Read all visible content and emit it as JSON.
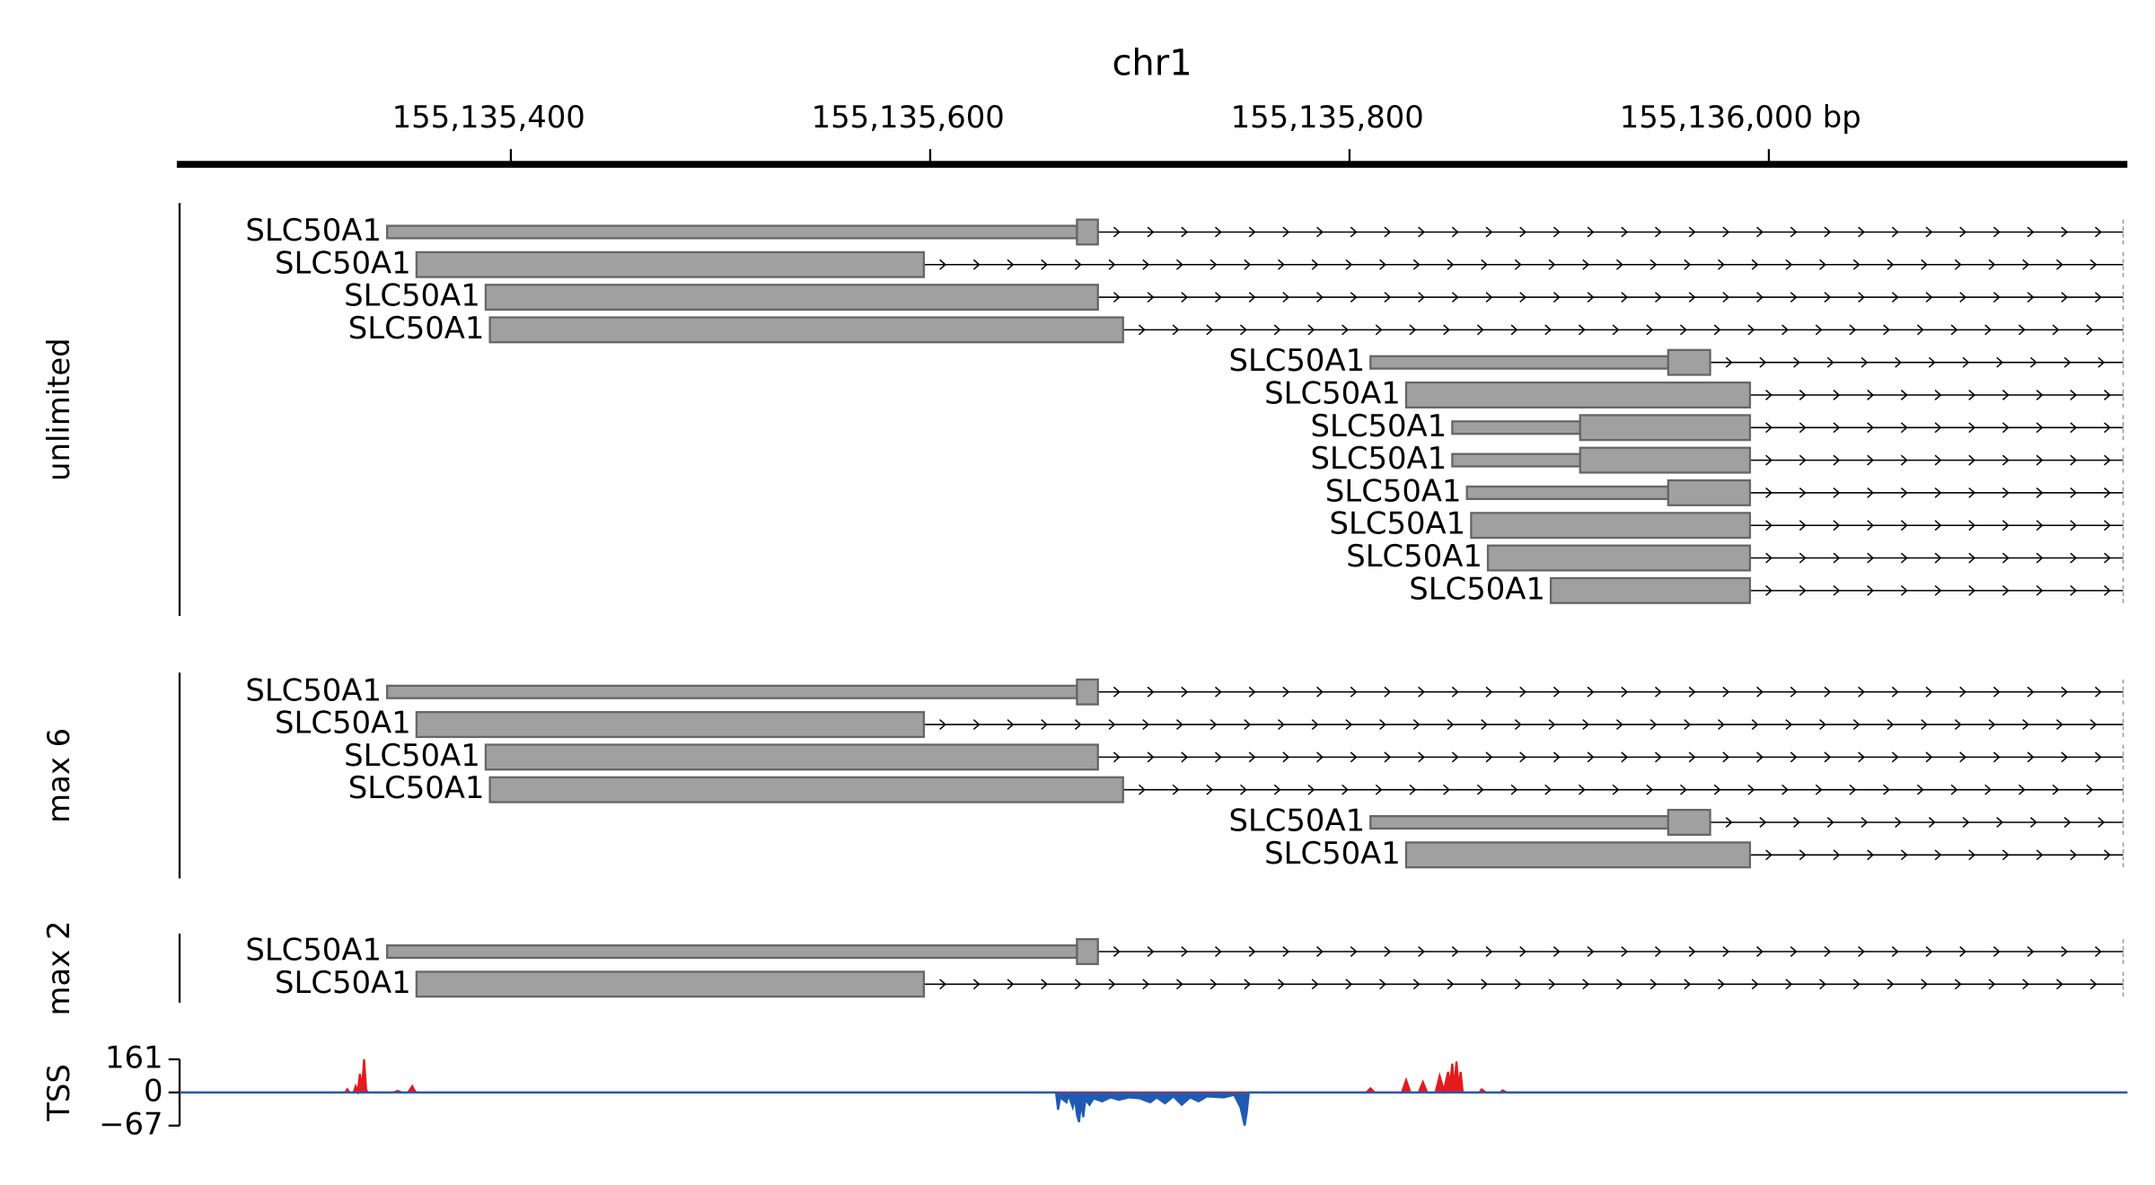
{
  "chart_data": {
    "type": "genome-tracks",
    "title": "chr1",
    "xlim": [
      155135242,
      155136171
    ],
    "xticks": [
      {
        "value": 155135400,
        "label": "155,135,400"
      },
      {
        "value": 155135600,
        "label": "155,135,600"
      },
      {
        "value": 155135800,
        "label": "155,135,800"
      },
      {
        "value": 155136000,
        "label": "155,136,000 bp"
      }
    ],
    "color": "#a0a0a0",
    "tracks": [
      {
        "label": "unlimited",
        "transcripts": [
          {
            "name": "SLC50A1",
            "start": 155135341,
            "end": 155136169,
            "utr": [
              155135341,
              155135670
            ],
            "cds": [
              155135670,
              155135680
            ]
          },
          {
            "name": "SLC50A1",
            "start": 155135355,
            "end": 155136169,
            "cds": [
              155135355,
              155135597
            ]
          },
          {
            "name": "SLC50A1",
            "start": 155135388,
            "end": 155136169,
            "cds": [
              155135388,
              155135680
            ]
          },
          {
            "name": "SLC50A1",
            "start": 155135390,
            "end": 155136169,
            "cds": [
              155135390,
              155135692
            ]
          },
          {
            "name": "SLC50A1",
            "start": 155135810,
            "end": 155136169,
            "utr": [
              155135810,
              155135952
            ],
            "cds": [
              155135952,
              155135972
            ]
          },
          {
            "name": "SLC50A1",
            "start": 155135827,
            "end": 155136169,
            "cds": [
              155135827,
              155135991
            ]
          },
          {
            "name": "SLC50A1",
            "start": 155135849,
            "end": 155136169,
            "utr": [
              155135849,
              155135910
            ],
            "cds": [
              155135910,
              155135991
            ]
          },
          {
            "name": "SLC50A1",
            "start": 155135849,
            "end": 155136169,
            "utr": [
              155135849,
              155135910
            ],
            "cds": [
              155135910,
              155135991
            ]
          },
          {
            "name": "SLC50A1",
            "start": 155135856,
            "end": 155136169,
            "utr": [
              155135856,
              155135952
            ],
            "cds": [
              155135952,
              155135991
            ]
          },
          {
            "name": "SLC50A1",
            "start": 155135858,
            "end": 155136169,
            "cds": [
              155135858,
              155135991
            ]
          },
          {
            "name": "SLC50A1",
            "start": 155135866,
            "end": 155136169,
            "cds": [
              155135866,
              155135991
            ]
          },
          {
            "name": "SLC50A1",
            "start": 155135896,
            "end": 155136169,
            "cds": [
              155135896,
              155135991
            ]
          }
        ]
      },
      {
        "label": "max 6",
        "transcripts": [
          {
            "name": "SLC50A1",
            "start": 155135341,
            "end": 155136169,
            "utr": [
              155135341,
              155135670
            ],
            "cds": [
              155135670,
              155135680
            ]
          },
          {
            "name": "SLC50A1",
            "start": 155135355,
            "end": 155136169,
            "cds": [
              155135355,
              155135597
            ]
          },
          {
            "name": "SLC50A1",
            "start": 155135388,
            "end": 155136169,
            "cds": [
              155135388,
              155135680
            ]
          },
          {
            "name": "SLC50A1",
            "start": 155135390,
            "end": 155136169,
            "cds": [
              155135390,
              155135692
            ]
          },
          {
            "name": "SLC50A1",
            "start": 155135810,
            "end": 155136169,
            "utr": [
              155135810,
              155135952
            ],
            "cds": [
              155135952,
              155135972
            ]
          },
          {
            "name": "SLC50A1",
            "start": 155135827,
            "end": 155136169,
            "cds": [
              155135827,
              155135991
            ]
          }
        ]
      },
      {
        "label": "max 2",
        "transcripts": [
          {
            "name": "SLC50A1",
            "start": 155135341,
            "end": 155136169,
            "utr": [
              155135341,
              155135670
            ],
            "cds": [
              155135670,
              155135680
            ]
          },
          {
            "name": "SLC50A1",
            "start": 155135355,
            "end": 155136169,
            "cds": [
              155135355,
              155135597
            ]
          }
        ]
      }
    ],
    "signal": {
      "label": "TSS",
      "ylim": [
        -67,
        161
      ],
      "yticks": [
        161,
        0,
        {
          "value": -67,
          "label": "−67"
        }
      ],
      "series": [
        {
          "color": "#e41a1c",
          "x": [
            155135242,
            155135321,
            155135322,
            155135323,
            155135325,
            155135326,
            155135327,
            155135328,
            155135329,
            155135330,
            155135331,
            155135332,
            155135344,
            155135346,
            155135348,
            155135351,
            155135353,
            155135354,
            155135355,
            155135808,
            155135810,
            155135812,
            155135825,
            155135827,
            155135829,
            155135833,
            155135835,
            155135837,
            155135841,
            155135843,
            155135845,
            155135847,
            155135848,
            155135849,
            155135850,
            155135851,
            155135852,
            155135853,
            155135854,
            155135862,
            155135863,
            155135865,
            155135872,
            155135873,
            155135875,
            155136171
          ],
          "values": [
            0,
            0,
            15,
            0,
            0,
            30,
            5,
            90,
            20,
            161,
            10,
            0,
            0,
            8,
            0,
            0,
            30,
            10,
            0,
            0,
            20,
            0,
            0,
            60,
            0,
            0,
            50,
            0,
            0,
            80,
            10,
            100,
            40,
            140,
            20,
            150,
            30,
            100,
            0,
            0,
            15,
            0,
            0,
            10,
            0,
            0
          ]
        },
        {
          "color": "#1f5bb4",
          "x": [
            155135242,
            155135660,
            155135661,
            155135662,
            155135665,
            155135666,
            155135668,
            155135669,
            155135670,
            155135671,
            155135672,
            155135673,
            155135674,
            155135676,
            155135678,
            155135682,
            155135686,
            155135690,
            155135695,
            155135700,
            155135705,
            155135708,
            155135712,
            155135716,
            155135720,
            155135724,
            155135728,
            155135732,
            155135740,
            155135745,
            155135748,
            155135750,
            155135751,
            155135752,
            155136171
          ],
          "values": [
            0,
            0,
            -35,
            -10,
            -20,
            -5,
            -30,
            -10,
            -45,
            -60,
            -20,
            -50,
            -15,
            -25,
            -12,
            -18,
            -10,
            -15,
            -10,
            -12,
            -20,
            -10,
            -22,
            -8,
            -25,
            -10,
            -18,
            -8,
            -10,
            -5,
            -30,
            -67,
            -40,
            0,
            0
          ]
        }
      ]
    }
  }
}
